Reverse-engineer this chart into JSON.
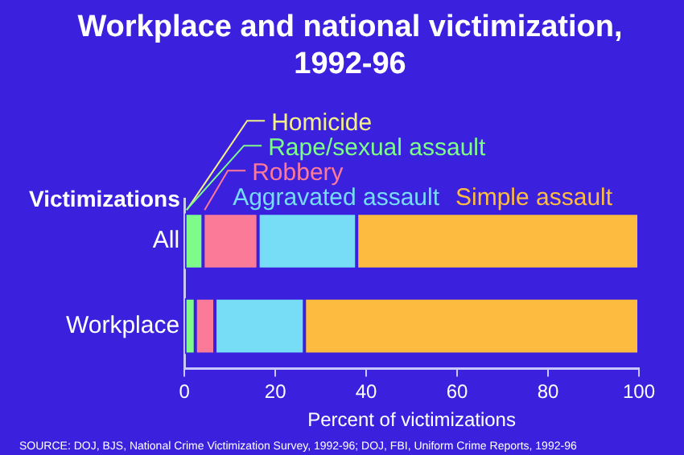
{
  "chart_data": {
    "type": "bar",
    "orientation": "horizontal",
    "stacked": true,
    "title": "Workplace and national victimization, 1992-96",
    "ylabel": "Victimizations",
    "xlabel": "Percent of victimizations",
    "categories": [
      "All",
      "Workplace"
    ],
    "series": [
      {
        "name": "Homicide",
        "color": "#f3f08a",
        "values": [
          0.1,
          0.1
        ]
      },
      {
        "name": "Rape/sexual assault",
        "color": "#7dfc8a",
        "values": [
          4.0,
          2.3
        ]
      },
      {
        "name": "Robbery",
        "color": "#fb7a98",
        "values": [
          12.1,
          4.3
        ]
      },
      {
        "name": "Aggravated assault",
        "color": "#77dcf5",
        "values": [
          21.7,
          19.7
        ]
      },
      {
        "name": "Simple assault",
        "color": "#fdbb40",
        "values": [
          62.1,
          73.6
        ]
      }
    ],
    "xlim": [
      0,
      100
    ],
    "xticks": [
      0,
      20,
      40,
      60,
      80,
      100
    ],
    "grid": false,
    "legend": "top",
    "annotations": [
      "SOURCE: DOJ, BJS, National Crime Victimization Survey, 1992-96; DOJ, FBI, Uniform Crime Reports, 1992-96"
    ]
  }
}
